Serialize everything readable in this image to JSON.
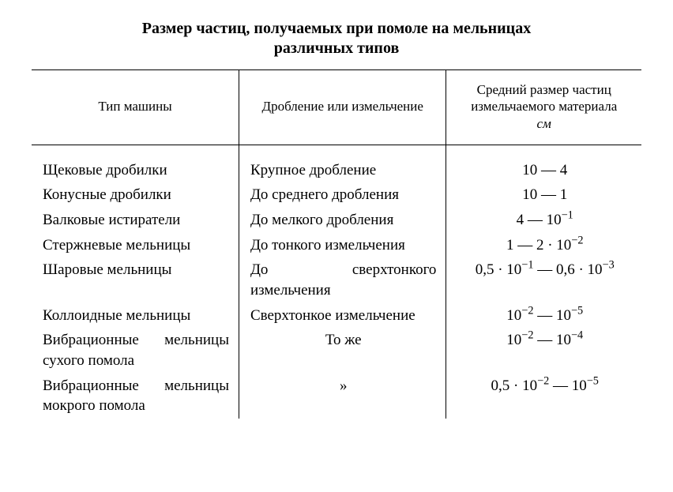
{
  "title_line1": "Размер частиц, получаемых при помоле на мельницах",
  "title_line2": "различных типов",
  "headers": {
    "col1": "Тип машины",
    "col2": "Дробление или измельчение",
    "col3_l1": "Средний размер частиц измельчаемого материала",
    "col3_unit": "см"
  },
  "rows": [
    {
      "machine": "Щековые дробилки",
      "process": "Крупное дробление",
      "size_html": "10 — 4"
    },
    {
      "machine": "Конусные дробилки",
      "process": "До среднего дробления",
      "size_html": "10 — 1"
    },
    {
      "machine": "Валковые истиратели",
      "process": "До мелкого дробления",
      "size_html": "4 — 10<sup>−1</sup>"
    },
    {
      "machine": "Стержневые мельницы",
      "process": "До тонкого измельчения",
      "size_html": "1 — 2 · 10<sup>−2</sup>"
    },
    {
      "machine": "Шаровые мельницы",
      "process": "До сверхтонкого измельчения",
      "size_html": "0,5 · 10<sup>−1</sup> — 0,6 · 10<sup>−3</sup>"
    },
    {
      "machine": "Коллоидные мельницы",
      "process": "Сверхтонкое измельчение",
      "size_html": "10<sup>−2</sup> — 10<sup>−5</sup>"
    },
    {
      "machine": "Вибрационные мельницы сухого помола",
      "process": "То же",
      "process_center": true,
      "size_html": "10<sup>−2</sup> — 10<sup>−4</sup>"
    },
    {
      "machine": "Вибрационные мельницы мокрого помола",
      "process": "»",
      "process_center": true,
      "size_html": "0,5 · 10<sup>−2</sup> — 10<sup>−5</sup>"
    }
  ]
}
